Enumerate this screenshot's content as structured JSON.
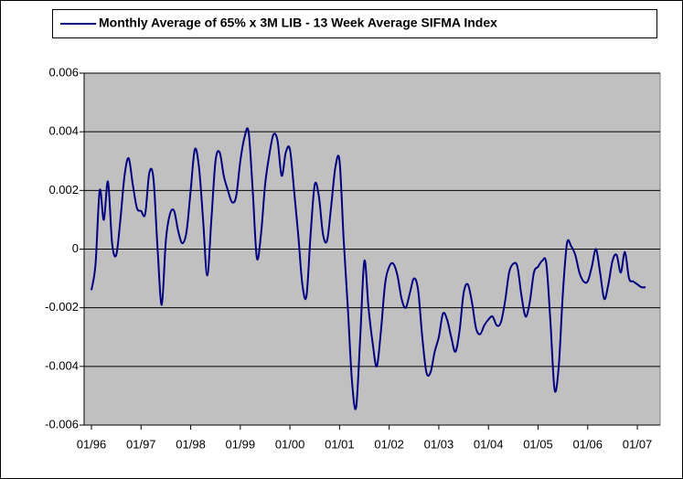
{
  "chart_data": {
    "type": "line",
    "categories": [
      "01/96",
      null,
      null,
      null,
      null,
      null,
      null,
      null,
      null,
      null,
      null,
      null,
      "01/97",
      null,
      null,
      null,
      null,
      null,
      null,
      null,
      null,
      null,
      null,
      null,
      "01/98",
      null,
      null,
      null,
      null,
      null,
      null,
      null,
      null,
      null,
      null,
      null,
      "01/99",
      null,
      null,
      null,
      null,
      null,
      null,
      null,
      null,
      null,
      null,
      null,
      "01/00",
      null,
      null,
      null,
      null,
      null,
      null,
      null,
      null,
      null,
      null,
      null,
      "01/01",
      null,
      null,
      null,
      null,
      null,
      null,
      null,
      null,
      null,
      null,
      null,
      "01/02",
      null,
      null,
      null,
      null,
      null,
      null,
      null,
      null,
      null,
      null,
      null,
      "01/03",
      null,
      null,
      null,
      null,
      null,
      null,
      null,
      null,
      null,
      null,
      null,
      "01/04",
      null,
      null,
      null,
      null,
      null,
      null,
      null,
      null,
      null,
      null,
      null,
      "01/05",
      null,
      null,
      null,
      null,
      null,
      null,
      null,
      null,
      null,
      null,
      null,
      "01/06",
      null,
      null,
      null,
      null,
      null,
      null,
      null,
      null,
      null,
      null,
      null,
      "01/07",
      null,
      null
    ],
    "series": [
      {
        "name": "Monthly Average of 65% x 3M LIB - 13 Week Average SIFMA Index",
        "color": "#000080",
        "values": [
          -0.0014,
          -0.0005,
          0.002,
          0.001,
          0.0023,
          0.0002,
          -0.0002,
          0.001,
          0.0025,
          0.0031,
          0.0022,
          0.0014,
          0.0013,
          0.0012,
          0.0026,
          0.0024,
          0.0,
          -0.0019,
          0.0003,
          0.0012,
          0.0013,
          0.0006,
          0.0002,
          0.0006,
          0.002,
          0.0034,
          0.0028,
          0.001,
          -0.0009,
          0.001,
          0.003,
          0.0033,
          0.0025,
          0.002,
          0.0016,
          0.0018,
          0.003,
          0.0038,
          0.004,
          0.002,
          -0.0003,
          0.0005,
          0.0022,
          0.0032,
          0.0039,
          0.0037,
          0.0025,
          0.0033,
          0.0034,
          0.002,
          0.0005,
          -0.0012,
          -0.0016,
          0.0005,
          0.0022,
          0.0018,
          0.0005,
          0.0003,
          0.0015,
          0.0028,
          0.003,
          0.0003,
          -0.002,
          -0.0045,
          -0.0054,
          -0.003,
          -0.0004,
          -0.002,
          -0.0032,
          -0.004,
          -0.0028,
          -0.0012,
          -0.0006,
          -0.0005,
          -0.0009,
          -0.0017,
          -0.002,
          -0.0015,
          -0.001,
          -0.0014,
          -0.003,
          -0.0042,
          -0.0042,
          -0.0035,
          -0.003,
          -0.0022,
          -0.0024,
          -0.003,
          -0.0035,
          -0.0028,
          -0.0015,
          -0.0012,
          -0.0018,
          -0.0027,
          -0.0029,
          -0.0026,
          -0.0024,
          -0.0023,
          -0.0026,
          -0.0025,
          -0.0018,
          -0.0008,
          -0.0005,
          -0.0006,
          -0.0016,
          -0.0023,
          -0.0018,
          -0.0008,
          -0.0006,
          -0.0004,
          -0.0005,
          -0.0025,
          -0.0048,
          -0.004,
          -0.0015,
          0.0002,
          0.0001,
          -0.0002,
          -0.0008,
          -0.0011,
          -0.0011,
          -0.0006,
          0.0,
          -0.0008,
          -0.0017,
          -0.0012,
          -0.0004,
          -0.0002,
          -0.0008,
          -0.0001,
          -0.001,
          -0.0011,
          -0.0012,
          -0.0013,
          -0.0013
        ]
      }
    ],
    "ylim": [
      -0.006,
      0.006
    ],
    "yticks": [
      -0.006,
      -0.004,
      -0.002,
      0,
      0.002,
      0.004,
      0.006
    ],
    "grid": true,
    "legend": "top",
    "plot_background": "#c0c0c0"
  }
}
